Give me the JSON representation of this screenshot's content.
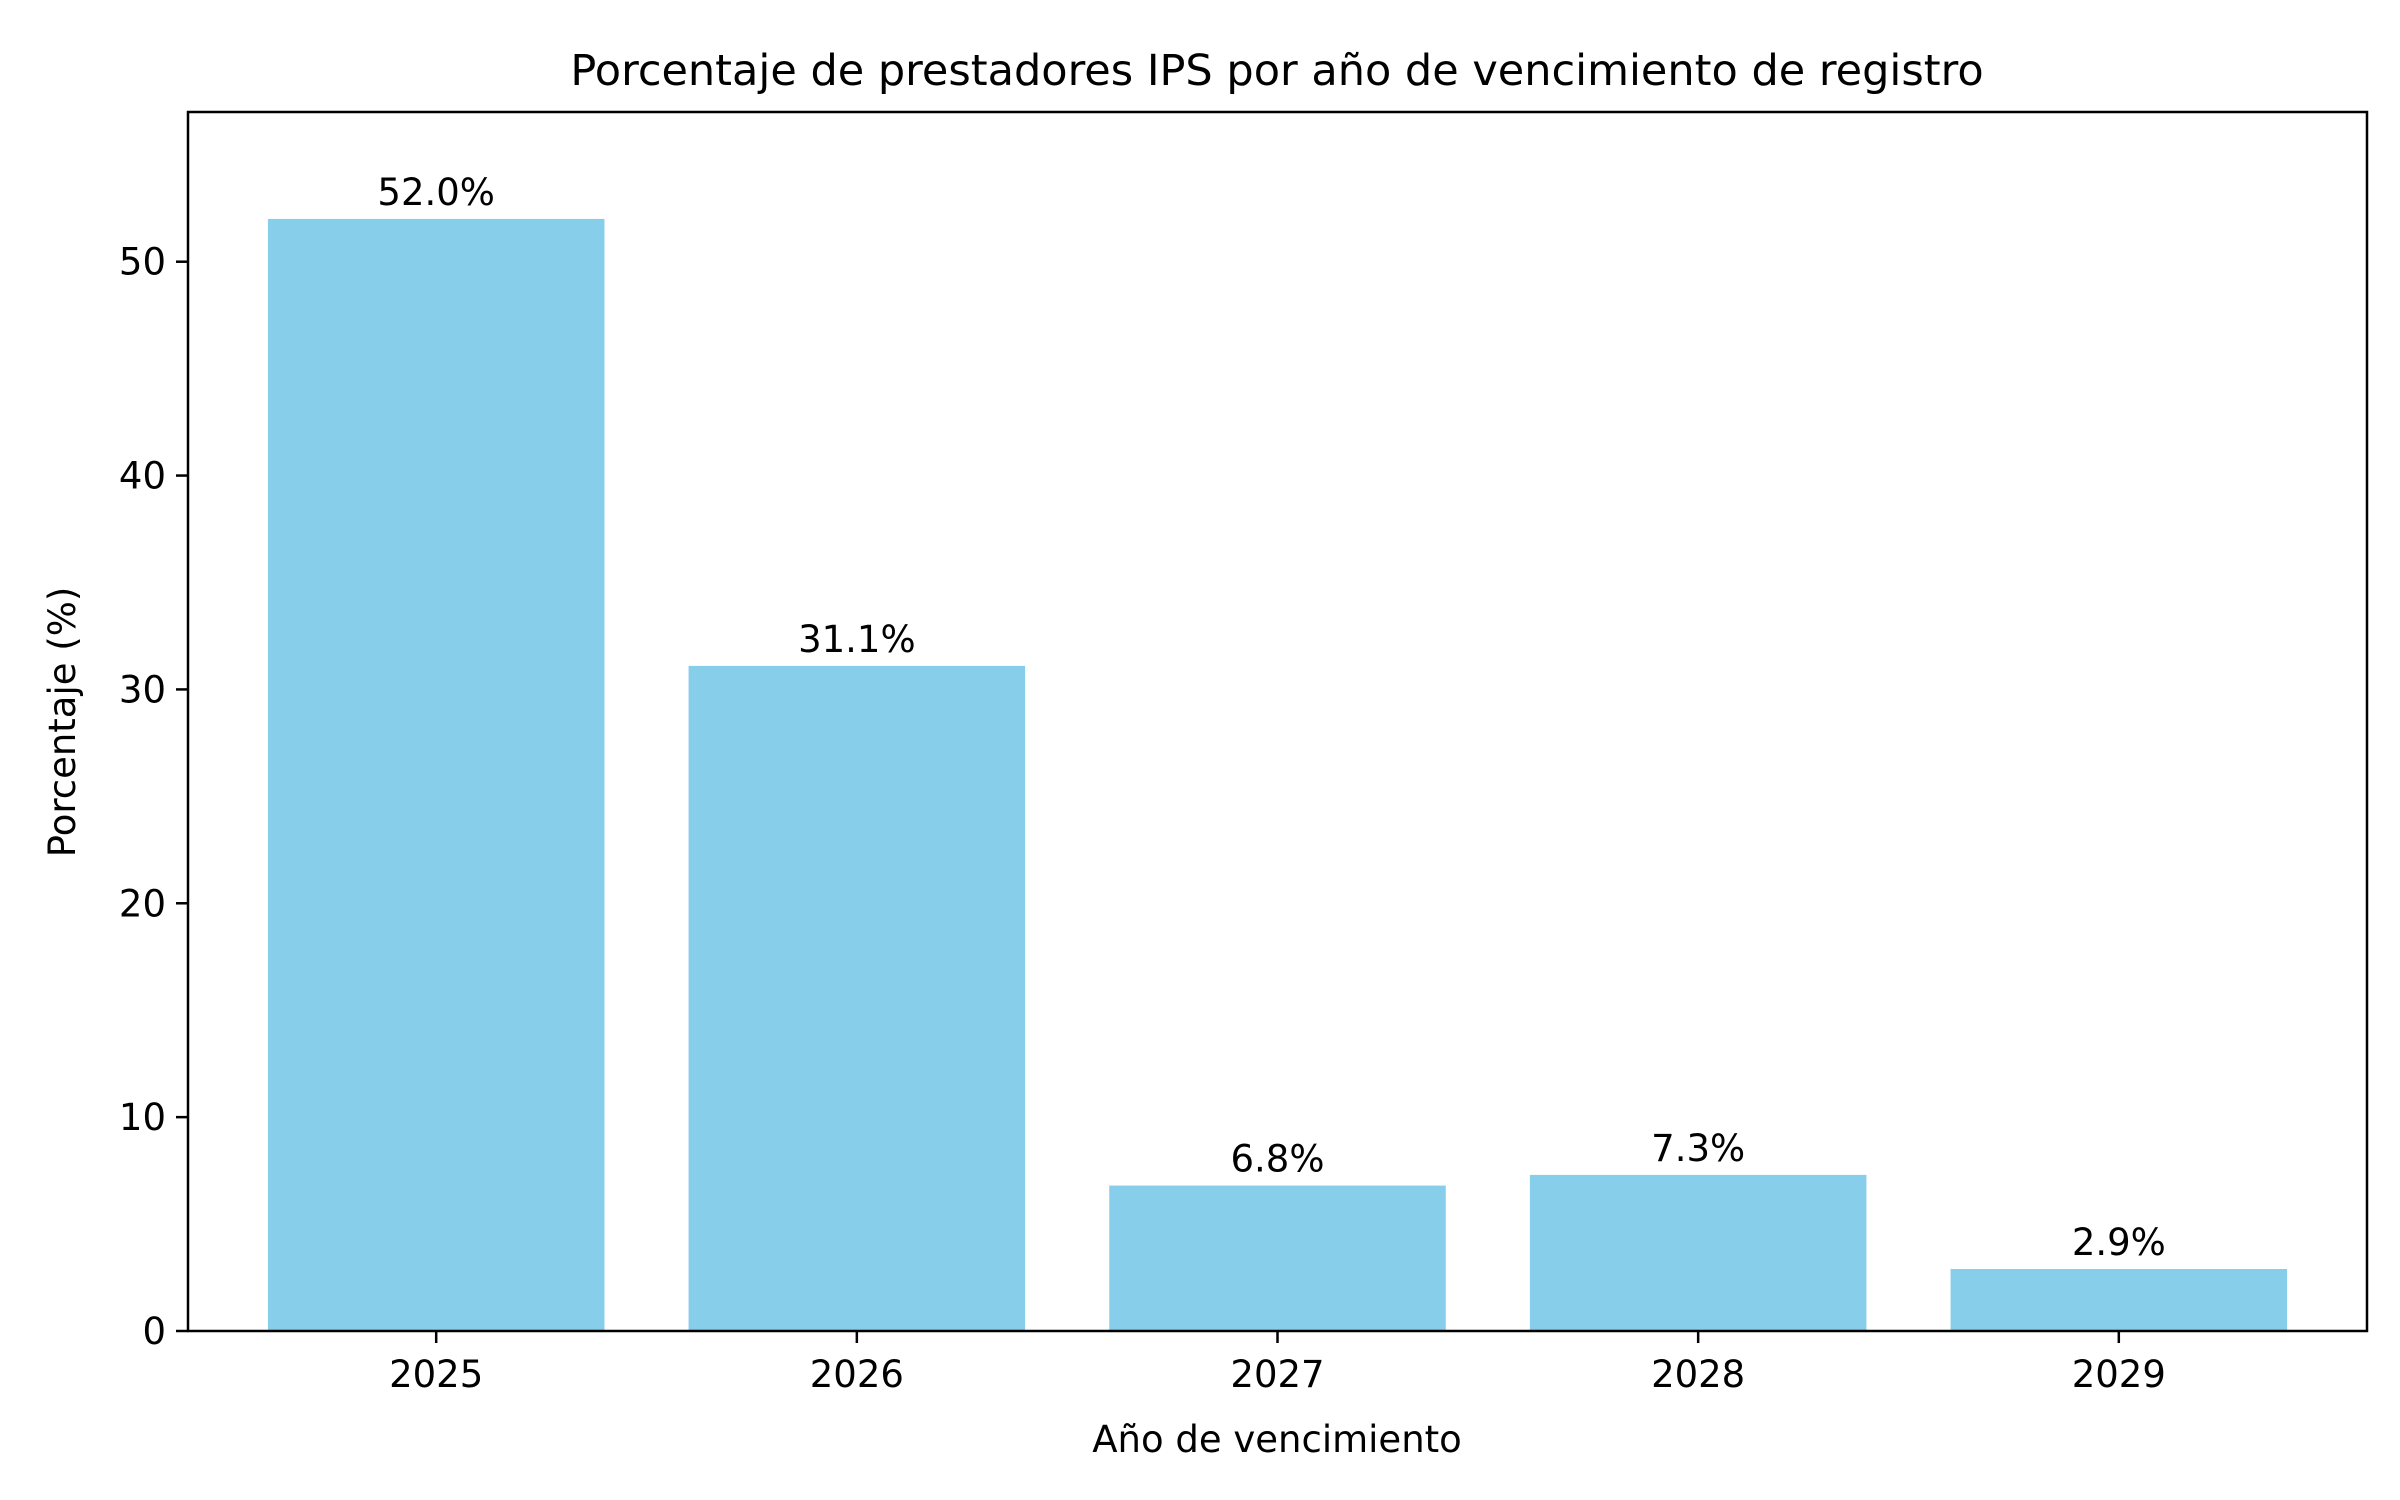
{
  "chart_data": {
    "type": "bar",
    "title": "Porcentaje de prestadores IPS por año de vencimiento de registro",
    "xlabel": "Año de vencimiento",
    "ylabel": "Porcentaje (%)",
    "categories": [
      "2025",
      "2026",
      "2027",
      "2028",
      "2029"
    ],
    "values": [
      52.0,
      31.1,
      6.8,
      7.3,
      2.9
    ],
    "data_labels": [
      "52.0%",
      "31.1%",
      "6.8%",
      "7.3%",
      "2.9%"
    ],
    "ylim": [
      0,
      57
    ],
    "yticks": [
      0,
      10,
      20,
      30,
      40,
      50
    ],
    "grid": false,
    "legend": "none",
    "bar_color": "#87CEEB"
  }
}
